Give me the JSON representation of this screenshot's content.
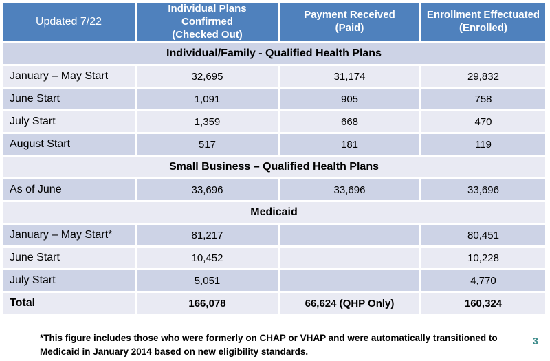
{
  "slide": {
    "page_number": "3",
    "footnote": "*This figure includes those who were formerly on CHAP or VHAP and were automatically transitioned to Medicaid in January 2014 based on new eligibility standards."
  },
  "table": {
    "header": {
      "updated": "Updated 7/22",
      "columns": [
        "Individual Plans\nConfirmed\n(Checked Out)",
        "Payment Received\n(Paid)",
        "Enrollment Effectuated\n(Enrolled)"
      ]
    },
    "rows": [
      {
        "type": "section",
        "label": "Individual/Family - Qualified Health Plans"
      },
      {
        "type": "data",
        "label": "January – May Start",
        "values": [
          "32,695",
          "31,174",
          "29,832"
        ]
      },
      {
        "type": "data",
        "label": "June Start",
        "values": [
          "1,091",
          "905",
          "758"
        ]
      },
      {
        "type": "data",
        "label": "July Start",
        "values": [
          "1,359",
          "668",
          "470"
        ]
      },
      {
        "type": "data",
        "label": "August Start",
        "values": [
          "517",
          "181",
          "119"
        ]
      },
      {
        "type": "section",
        "label": "Small Business – Qualified Health Plans"
      },
      {
        "type": "data",
        "label": "As of June",
        "values": [
          "33,696",
          "33,696",
          "33,696"
        ]
      },
      {
        "type": "section",
        "label": "Medicaid"
      },
      {
        "type": "data",
        "label": "January – May Start*",
        "values": [
          "81,217",
          "",
          "80,451"
        ]
      },
      {
        "type": "data",
        "label": "June Start",
        "values": [
          "10,452",
          "",
          "10,228"
        ]
      },
      {
        "type": "data",
        "label": "July Start",
        "values": [
          "5,051",
          "",
          "4,770"
        ]
      },
      {
        "type": "total",
        "label": "Total",
        "values": [
          "166,078",
          "66,624 (QHP Only)",
          "160,324"
        ]
      }
    ]
  },
  "colors": {
    "header_blue": "#4f81bd",
    "band_dark": "#cdd3e6",
    "band_light": "#e9eaf3",
    "page_number_teal": "#3d8c8b"
  }
}
